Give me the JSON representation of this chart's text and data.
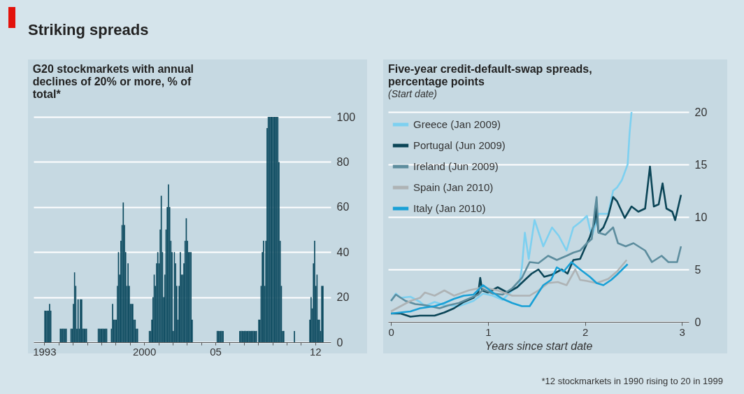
{
  "chart_data": [
    {
      "type": "bar",
      "title": "Striking spreads",
      "subtitle": "G20 stockmarkets with annual declines of 20% or more, % of total*",
      "color": "#0f4c61",
      "grid": "y",
      "x": [
        "1993-01",
        "1993-02",
        "1993-03",
        "1993-04",
        "1993-05",
        "1993-06",
        "1994-02",
        "1994-03",
        "1994-04",
        "1994-05",
        "1994-06",
        "1994-07",
        "1994-11",
        "1994-12",
        "1995-01",
        "1995-02",
        "1995-03",
        "1995-04",
        "1995-05",
        "1995-06",
        "1995-07",
        "1995-08",
        "1995-09",
        "1995-10",
        "1995-11",
        "1995-12",
        "1996-10",
        "1996-11",
        "1996-12",
        "1997-01",
        "1997-02",
        "1997-03",
        "1997-04",
        "1997-05",
        "1997-09",
        "1997-10",
        "1997-11",
        "1997-12",
        "1998-01",
        "1998-02",
        "1998-03",
        "1998-04",
        "1998-05",
        "1998-06",
        "1998-07",
        "1998-08",
        "1998-09",
        "1998-10",
        "1998-11",
        "1998-12",
        "1999-01",
        "1999-02",
        "1999-03",
        "1999-04",
        "1999-05",
        "1999-06",
        "1999-07",
        "2000-05",
        "2000-06",
        "2000-07",
        "2000-08",
        "2000-09",
        "2000-10",
        "2000-11",
        "2000-12",
        "2001-01",
        "2001-02",
        "2001-03",
        "2001-04",
        "2001-05",
        "2001-06",
        "2001-07",
        "2001-08",
        "2001-09",
        "2001-10",
        "2001-11",
        "2001-12",
        "2002-01",
        "2002-02",
        "2002-03",
        "2002-04",
        "2002-05",
        "2002-06",
        "2002-07",
        "2002-08",
        "2002-09",
        "2002-10",
        "2002-11",
        "2002-12",
        "2003-01",
        "2003-02",
        "2003-03",
        "2003-04",
        "2003-05",
        "2005-02",
        "2005-03",
        "2005-04",
        "2005-05",
        "2005-06",
        "2005-07",
        "2006-09",
        "2006-10",
        "2006-11",
        "2006-12",
        "2007-01",
        "2007-02",
        "2007-03",
        "2007-04",
        "2007-05",
        "2007-06",
        "2007-07",
        "2007-08",
        "2007-09",
        "2007-10",
        "2007-11",
        "2008-01",
        "2008-02",
        "2008-03",
        "2008-04",
        "2008-05",
        "2008-06",
        "2008-07",
        "2008-08",
        "2008-09",
        "2008-10",
        "2008-11",
        "2008-12",
        "2009-01",
        "2009-02",
        "2009-03",
        "2009-04",
        "2009-05",
        "2009-06",
        "2009-07",
        "2009-08",
        "2009-09",
        "2009-10",
        "2010-07",
        "2011-08",
        "2011-09",
        "2011-10",
        "2011-11",
        "2011-12",
        "2012-01",
        "2012-02",
        "2012-03",
        "2012-04",
        "2012-05",
        "2012-06",
        "2012-07"
      ],
      "values": [
        14,
        14,
        14,
        14,
        17,
        14,
        6,
        6,
        6,
        6,
        6,
        6,
        6,
        6,
        17,
        31,
        25,
        6,
        19,
        6,
        19,
        19,
        6,
        6,
        6,
        6,
        6,
        6,
        6,
        6,
        6,
        6,
        6,
        6,
        6,
        17,
        10,
        10,
        10,
        25,
        40,
        30,
        45,
        52,
        62,
        52,
        40,
        25,
        35,
        25,
        17,
        17,
        17,
        10,
        10,
        6,
        6,
        5,
        5,
        10,
        20,
        30,
        25,
        35,
        40,
        35,
        50,
        65,
        40,
        20,
        30,
        50,
        60,
        70,
        60,
        45,
        40,
        5,
        40,
        35,
        25,
        10,
        25,
        40,
        30,
        30,
        35,
        45,
        55,
        45,
        40,
        40,
        40,
        10,
        5,
        5,
        5,
        5,
        5,
        5,
        5,
        5,
        5,
        5,
        5,
        5,
        5,
        5,
        5,
        5,
        5,
        5,
        5,
        5,
        5,
        10,
        10,
        25,
        40,
        45,
        25,
        45,
        95,
        100,
        100,
        100,
        100,
        100,
        100,
        100,
        100,
        100,
        80,
        45,
        25,
        5,
        5,
        5,
        10,
        20,
        15,
        35,
        45,
        25,
        30,
        10,
        10,
        5,
        25,
        25
      ],
      "xlim": [
        "1992-04",
        "2013-02"
      ],
      "xticks": [
        {
          "value": "1993-01",
          "label": "1993"
        },
        {
          "value": "1994-01",
          "label": null
        },
        {
          "value": "1995-01",
          "label": null
        },
        {
          "value": "1996-01",
          "label": null
        },
        {
          "value": "1997-01",
          "label": null
        },
        {
          "value": "1998-01",
          "label": null
        },
        {
          "value": "1999-01",
          "label": null
        },
        {
          "value": "2000-01",
          "label": "2000"
        },
        {
          "value": "2001-01",
          "label": null
        },
        {
          "value": "2002-01",
          "label": null
        },
        {
          "value": "2003-01",
          "label": null
        },
        {
          "value": "2004-01",
          "label": null
        },
        {
          "value": "2005-01",
          "label": "05"
        },
        {
          "value": "2006-01",
          "label": null
        },
        {
          "value": "2007-01",
          "label": null
        },
        {
          "value": "2008-01",
          "label": null
        },
        {
          "value": "2009-01",
          "label": null
        },
        {
          "value": "2010-01",
          "label": null
        },
        {
          "value": "2011-01",
          "label": null
        },
        {
          "value": "2012-01",
          "label": "12"
        }
      ],
      "ylim": [
        0,
        100
      ],
      "yticks": [
        0,
        20,
        40,
        60,
        80,
        100
      ]
    },
    {
      "type": "line",
      "title": "Five-year credit-default-swap spreads, percentage points",
      "subtitle": "(Start date)",
      "xlabel": "Years since start date",
      "grid": "y",
      "legend": "top left",
      "xlim": [
        -0.03,
        3.07
      ],
      "xticks": [
        0,
        1,
        2,
        3
      ],
      "ylim": [
        0,
        20
      ],
      "yticks": [
        0,
        5,
        10,
        15,
        20
      ],
      "annotations": [
        "*12 stockmarkets in 1990 rising to 20 in 1999"
      ],
      "series": [
        {
          "name": "Greece (Jan 2009)",
          "color": "#7dd0f0",
          "x": [
            0,
            0.05,
            0.1,
            0.2,
            0.3,
            0.35,
            0.45,
            0.55,
            0.7,
            0.85,
            0.95,
            1.05,
            1.15,
            1.25,
            1.32,
            1.35,
            1.38,
            1.42,
            1.48,
            1.57,
            1.66,
            1.73,
            1.81,
            1.88,
            1.95,
            2.02,
            2.07,
            2.14,
            2.24,
            2.29,
            2.33,
            2.38,
            2.44,
            2.46,
            2.48
          ],
          "values": [
            2.0,
            2.7,
            2.3,
            2.4,
            1.9,
            1.5,
            1.9,
            1.6,
            1.5,
            2.0,
            2.7,
            2.5,
            2.1,
            3.0,
            3.4,
            5.2,
            8.5,
            6.0,
            9.7,
            7.2,
            9.0,
            8.2,
            6.8,
            9.0,
            9.5,
            10.1,
            8.1,
            10.3,
            10.3,
            12.5,
            12.8,
            13.5,
            15,
            18,
            20
          ]
        },
        {
          "name": "Portugal (Jun 2009)",
          "color": "#0b4557",
          "x": [
            0,
            0.1,
            0.2,
            0.3,
            0.45,
            0.55,
            0.65,
            0.75,
            0.85,
            0.9,
            0.92,
            0.94,
            1.0,
            1.1,
            1.2,
            1.3,
            1.38,
            1.45,
            1.52,
            1.58,
            1.66,
            1.76,
            1.82,
            1.88,
            1.95,
            2.05,
            2.1,
            2.11,
            2.14,
            2.19,
            2.24,
            2.29,
            2.33,
            2.41,
            2.48,
            2.55,
            2.62,
            2.67,
            2.71,
            2.76,
            2.8,
            2.84,
            2.9,
            2.93,
            2.99
          ],
          "values": [
            0.8,
            0.8,
            0.5,
            0.6,
            0.6,
            0.9,
            1.3,
            1.9,
            2.3,
            2.8,
            4.2,
            3.0,
            2.8,
            3.3,
            2.8,
            3.3,
            4.0,
            4.6,
            5.0,
            4.3,
            4.5,
            5.0,
            4.6,
            5.9,
            6.0,
            8.1,
            9.5,
            11.0,
            8.5,
            9.0,
            10.1,
            11.9,
            11.5,
            9.9,
            11.0,
            10.5,
            10.8,
            14.8,
            11.0,
            11.2,
            13.2,
            10.8,
            10.5,
            9.7,
            12.1
          ]
        },
        {
          "name": "Ireland (Jun 2009)",
          "color": "#5d8d9e",
          "x": [
            0,
            0.05,
            0.15,
            0.25,
            0.35,
            0.5,
            0.6,
            0.7,
            0.8,
            0.9,
            0.95,
            1.05,
            1.15,
            1.25,
            1.35,
            1.43,
            1.52,
            1.62,
            1.71,
            1.81,
            1.88,
            1.95,
            2.02,
            2.07,
            2.1,
            2.12,
            2.14,
            2.21,
            2.29,
            2.34,
            2.42,
            2.5,
            2.62,
            2.69,
            2.79,
            2.86,
            2.95,
            2.99
          ],
          "values": [
            2.0,
            2.6,
            2.0,
            1.7,
            1.6,
            1.3,
            1.6,
            1.8,
            2.2,
            2.6,
            3.1,
            2.7,
            2.6,
            3.2,
            4.2,
            5.7,
            5.6,
            6.3,
            5.9,
            6.3,
            6.6,
            6.8,
            7.5,
            7.9,
            10.5,
            11.9,
            8.5,
            8.3,
            9.0,
            7.5,
            7.2,
            7.5,
            6.8,
            5.7,
            6.3,
            5.7,
            5.7,
            7.2
          ]
        },
        {
          "name": "Spain (Jan 2010)",
          "color": "#aeb3b5",
          "x": [
            0,
            0.1,
            0.2,
            0.3,
            0.35,
            0.45,
            0.55,
            0.65,
            0.8,
            0.95,
            1.1,
            1.25,
            1.35,
            1.43,
            1.52,
            1.62,
            1.72,
            1.81,
            1.9,
            1.95,
            2.02,
            2.12,
            2.24,
            2.33,
            2.43
          ],
          "values": [
            1.0,
            1.5,
            2.0,
            2.3,
            2.8,
            2.5,
            3.0,
            2.5,
            3.0,
            3.3,
            3.0,
            2.5,
            2.5,
            2.5,
            3.0,
            3.7,
            3.8,
            3.5,
            5.0,
            4.0,
            3.9,
            3.7,
            4.1,
            4.8,
            5.9
          ]
        },
        {
          "name": "Italy (Jan 2010)",
          "color": "#19a0d6",
          "x": [
            0,
            0.1,
            0.2,
            0.3,
            0.45,
            0.55,
            0.65,
            0.75,
            0.85,
            0.95,
            1.05,
            1.15,
            1.25,
            1.35,
            1.43,
            1.5,
            1.57,
            1.65,
            1.71,
            1.78,
            1.86,
            1.95,
            2.05,
            2.12,
            2.19,
            2.27,
            2.33,
            2.44
          ],
          "values": [
            0.8,
            0.9,
            1.0,
            1.3,
            1.5,
            1.8,
            2.2,
            2.5,
            2.6,
            3.5,
            2.8,
            2.2,
            1.8,
            1.5,
            1.5,
            2.5,
            3.5,
            4.0,
            5.2,
            4.8,
            5.7,
            5.0,
            4.3,
            3.7,
            3.5,
            4.0,
            4.5,
            5.5
          ]
        }
      ]
    }
  ]
}
